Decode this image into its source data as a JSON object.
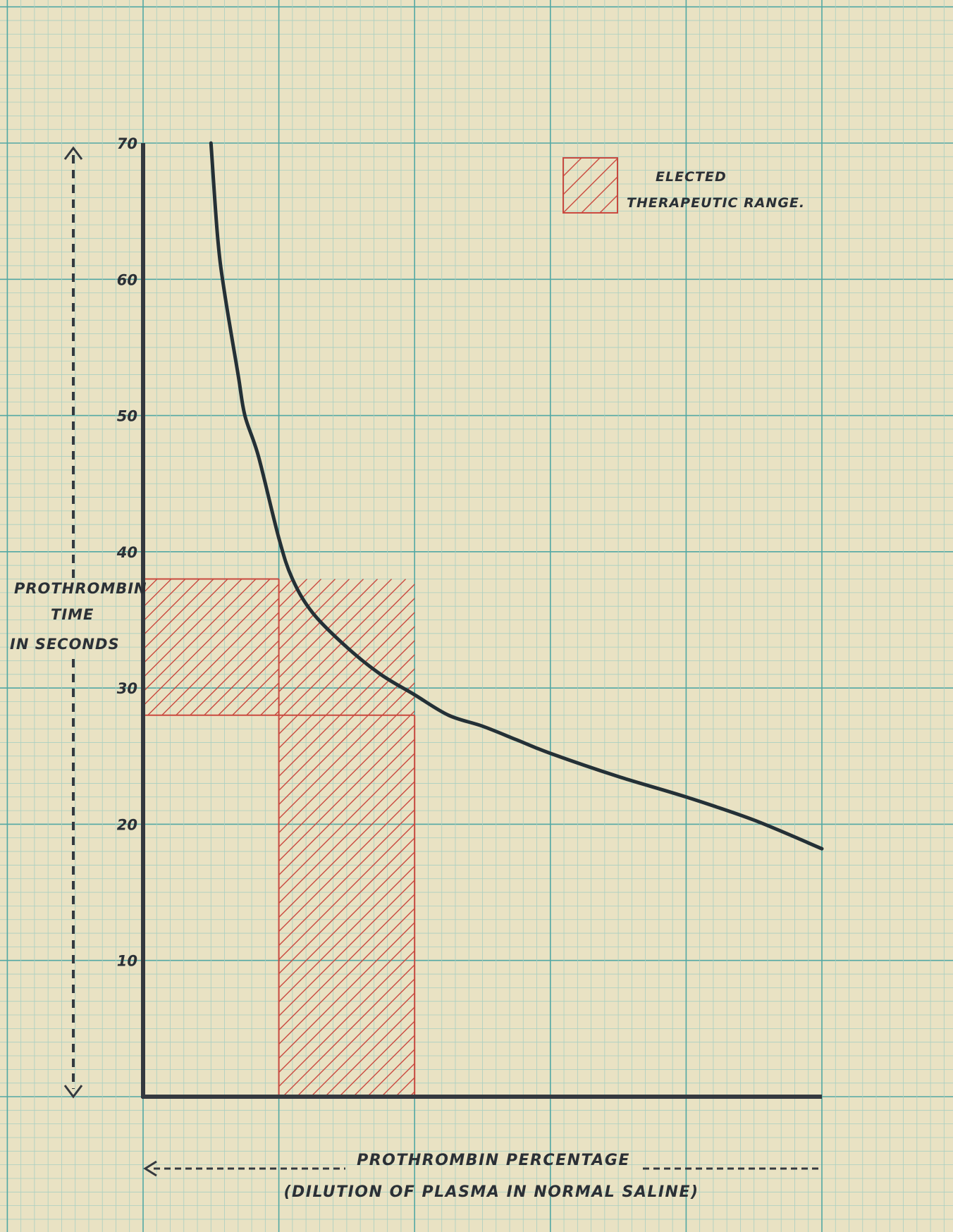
{
  "chart_data": {
    "type": "line",
    "xlabel": "PROTHROMBIN PERCENTAGE",
    "xlabel_sub": "(DILUTION OF PLASMA IN NORMAL SALINE)",
    "ylabel_lines": [
      "PROTHROMBIN",
      "TIME",
      "IN SECONDS"
    ],
    "y_ticks": [
      10,
      20,
      30,
      40,
      50,
      60,
      70
    ],
    "ylim": [
      0,
      70
    ],
    "xlim": [
      0,
      100
    ],
    "grid": true,
    "legend": {
      "label_lines": [
        "ELECTED",
        "THERAPEUTIC RANGE."
      ],
      "placement": "top-right"
    },
    "series": [
      {
        "x": [
          10,
          11,
          12,
          14,
          15,
          17,
          20,
          22,
          25,
          30,
          35,
          40,
          45,
          50,
          55,
          60,
          70,
          80,
          90,
          100
        ],
        "y": [
          70,
          63,
          59,
          53,
          50,
          47,
          41,
          38,
          35.5,
          33,
          31,
          29.5,
          28,
          27.2,
          26.2,
          25.2,
          23.5,
          22,
          20.3,
          18.2
        ]
      }
    ],
    "ranges": {
      "therapeutic_range": {
        "time_seconds": [
          28,
          38
        ],
        "percentage": [
          20,
          40
        ]
      }
    },
    "colors": {
      "paper": "#e9e2c3",
      "grid_major": "#52a8a4",
      "grid_minor": "#a9cfc1",
      "axis": "#34393f",
      "curve": "#243036",
      "hatch": "#c9493f",
      "text": "#2b3036"
    }
  }
}
